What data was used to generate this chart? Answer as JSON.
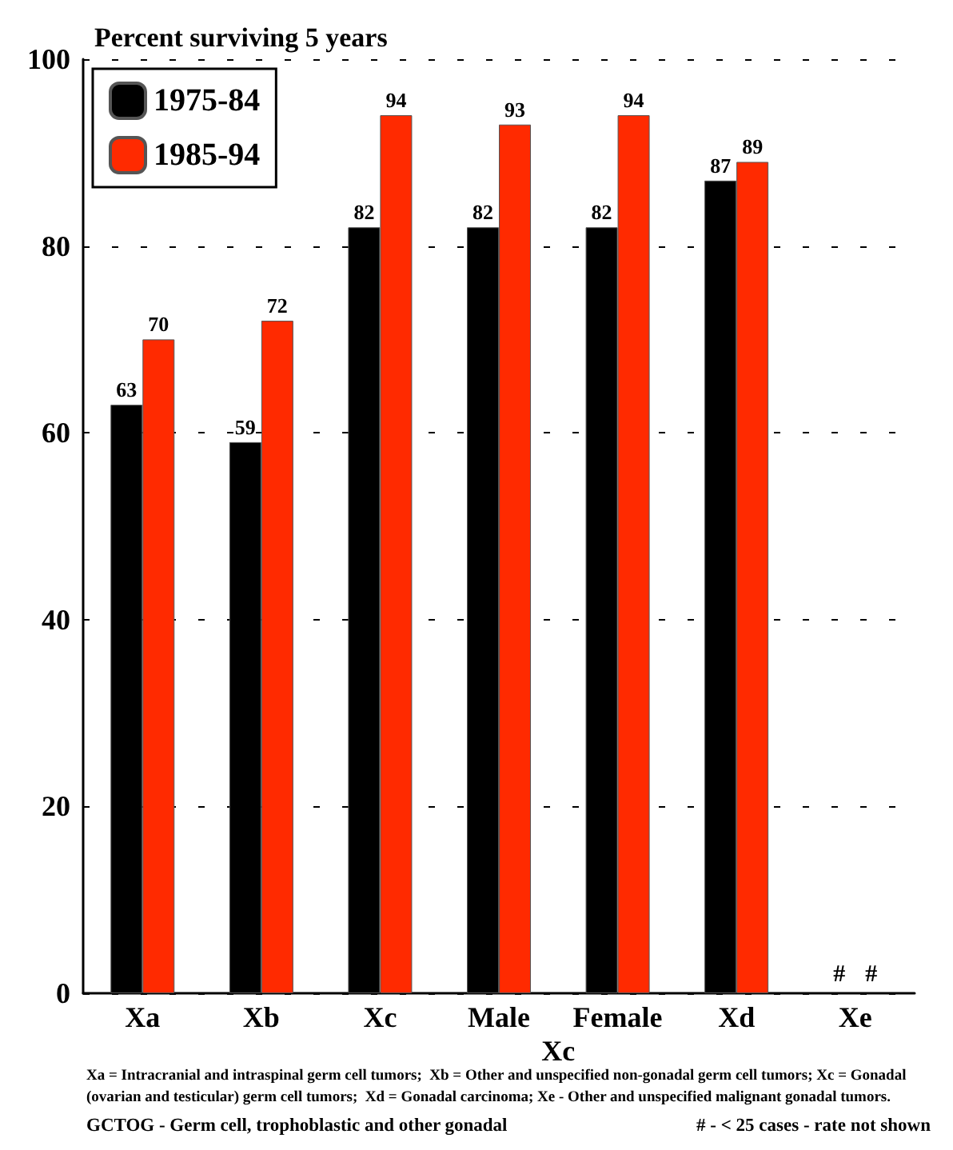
{
  "chart_data": {
    "type": "bar",
    "title": "Percent surviving 5 years",
    "categories": [
      "Xa",
      "Xb",
      "Xc",
      "Male",
      "Female",
      "Xd",
      "Xe"
    ],
    "series": [
      {
        "name": "1975-84",
        "color": "#000000",
        "values": [
          63,
          59,
          82,
          82,
          82,
          87,
          null
        ],
        "value_labels": [
          "63",
          "59",
          "82",
          "82",
          "82",
          "87",
          "#"
        ]
      },
      {
        "name": "1985-94",
        "color": "#ff2a00",
        "values": [
          70,
          72,
          94,
          93,
          94,
          89,
          null
        ],
        "value_labels": [
          "70",
          "72",
          "94",
          "93",
          "94",
          "89",
          "#"
        ]
      }
    ],
    "ylim": [
      0,
      100
    ],
    "yticks": [
      0,
      20,
      40,
      60,
      80,
      100
    ],
    "grid": "y",
    "legend": "top left",
    "annotations": [
      "Xc",
      "Xa = Intracranial and intraspinal germ cell tumors;  Xb = Other and unspecified non-gonadal germ cell tumors; Xc = Gonadal (ovarian and testicular) germ cell tumors;  Xd = Gonadal carcinoma; Xe - Other and unspecified malignant gonadal tumors.",
      "GCTOG - Germ cell, trophoblastic and other gonadal",
      "# - < 25 cases - rate not shown"
    ]
  }
}
